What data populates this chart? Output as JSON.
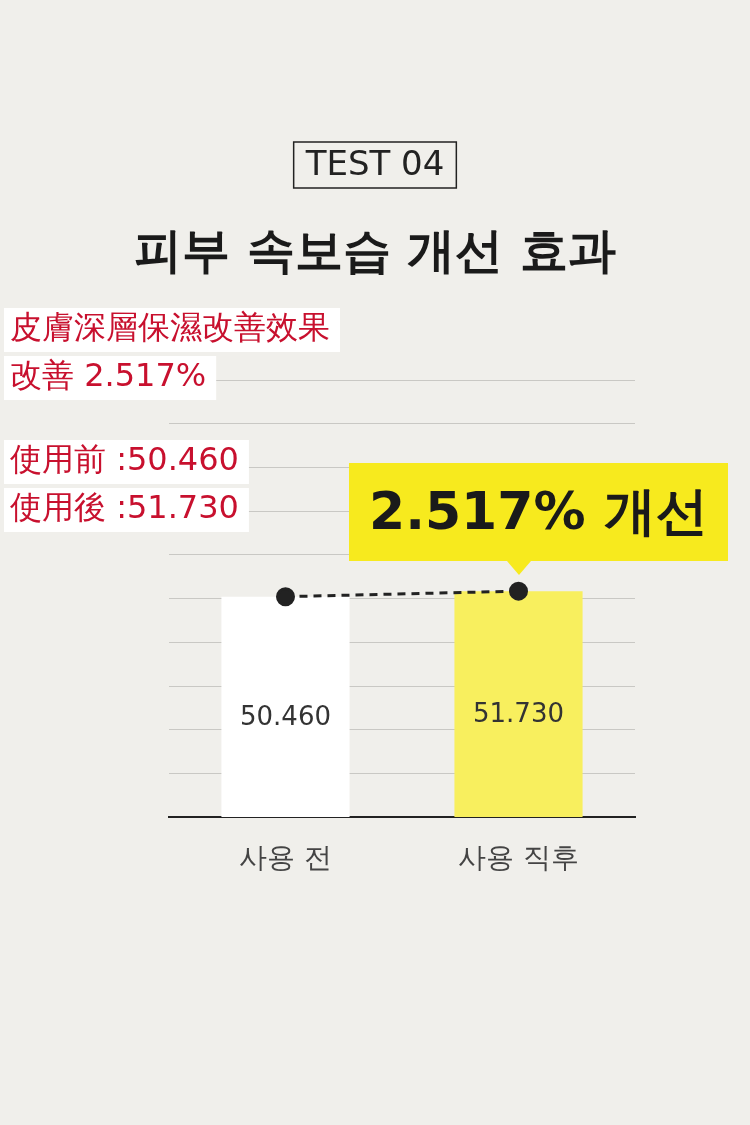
{
  "chart_data": {
    "type": "bar",
    "title": "피부 속보습 개선 효과",
    "subtitle": "TEST 04",
    "categories": [
      "사용 전",
      "사용 직후"
    ],
    "series": [
      {
        "colors": [
          "#ffffff",
          "#f8ef5e"
        ],
        "values": [
          50.46,
          51.73
        ],
        "value_labels": [
          "50.460",
          "51.730"
        ]
      },
      {
        "type": "line",
        "color": "#222222",
        "values": [
          50.46,
          51.73
        ],
        "marker": "circle",
        "line_style": "dashed"
      }
    ],
    "grid": "y",
    "tick_labels": "x",
    "legend": false,
    "annotations": [
      {
        "text": "2.517% 개선",
        "x": "사용 직후",
        "y": 51.73
      },
      "皮膚深層保濕改善效果",
      "改善 2.517%",
      "使用前 :50.460",
      "使用後 :51.730"
    ]
  }
}
